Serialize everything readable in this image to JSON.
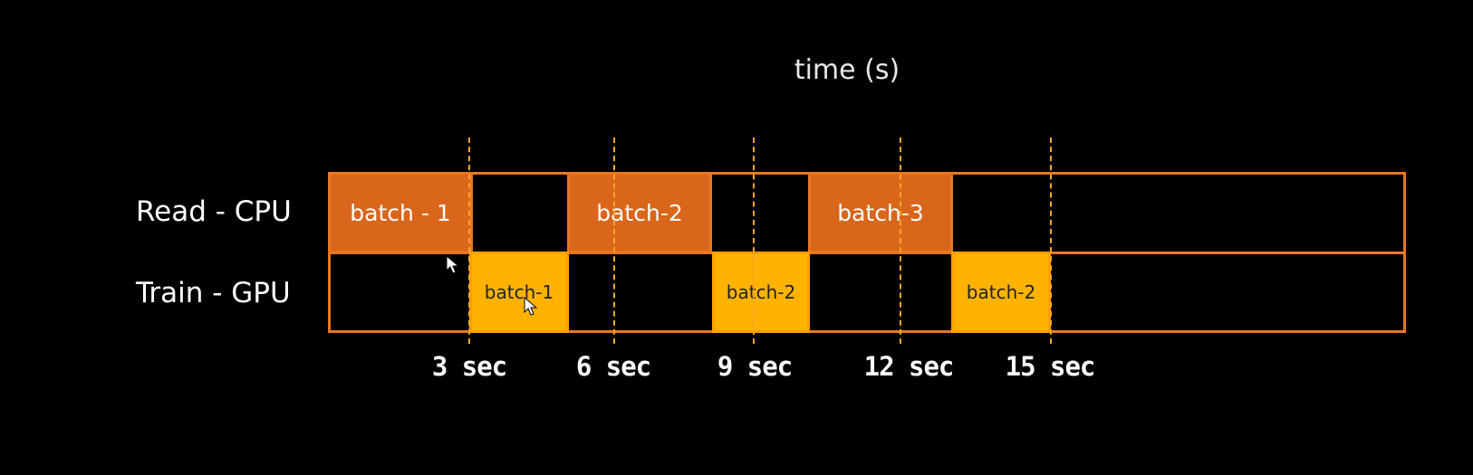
{
  "title": "time (s)",
  "rows": {
    "cpu": "Read - CPU",
    "gpu": "Train - GPU"
  },
  "read_blocks": [
    "batch - 1",
    "batch-2",
    "batch-3"
  ],
  "train_blocks": [
    "batch-1",
    "batch-2",
    "batch-2"
  ],
  "ticks": [
    "3 sec",
    "6 sec",
    "9 sec",
    "12 sec",
    "15 sec"
  ],
  "colors": {
    "read": "#d9661a",
    "train": "#ffb300",
    "outline": "#e87722",
    "dashed": "#f5a623"
  }
}
